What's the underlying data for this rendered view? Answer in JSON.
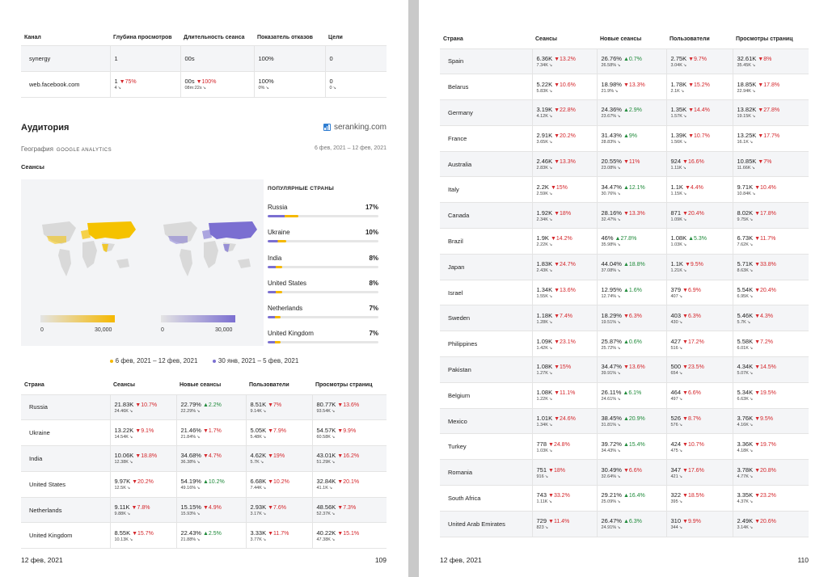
{
  "left": {
    "channel_table": {
      "headers": [
        "Канал",
        "Глубина просмотров",
        "Длительность сеанса",
        "Показатель отказов",
        "Цели"
      ],
      "rows": [
        {
          "cells": [
            {
              "v": "synergy"
            },
            {
              "v": "1"
            },
            {
              "v": "00s"
            },
            {
              "v": "100%"
            },
            {
              "v": "0"
            }
          ]
        },
        {
          "cells": [
            {
              "v": "web.facebook.com"
            },
            {
              "v": "1",
              "d": "▼75%",
              "dir": "dn",
              "s": "4"
            },
            {
              "v": "00s",
              "d": "▼100%",
              "dir": "dn",
              "s": "08m:22s"
            },
            {
              "v": "100%",
              "s": "0%"
            },
            {
              "v": "0",
              "s": "0"
            }
          ]
        }
      ]
    },
    "audience": {
      "title": "Аудитория",
      "brand": "seranking.com",
      "geo": "География",
      "geo_sub": "GOOGLE ANALYTICS",
      "dates": "6 фев, 2021 – 12 фев, 2021",
      "sessions_label": "Сеансы"
    },
    "map": {
      "color_current": "#f5b800",
      "color_previous": "#7b6fd1",
      "legend_min_1": "0",
      "legend_max_1": "30,000",
      "legend_min_2": "0",
      "legend_max_2": "30,000"
    },
    "popular": {
      "title": "ПОПУЛЯРНЫЕ СТРАНЫ",
      "items": [
        {
          "name": "Russia",
          "pct": "17%",
          "share": 0.17
        },
        {
          "name": "Ukraine",
          "pct": "10%",
          "share": 0.1
        },
        {
          "name": "India",
          "pct": "8%",
          "share": 0.08
        },
        {
          "name": "United States",
          "pct": "8%",
          "share": 0.08
        },
        {
          "name": "Netherlands",
          "pct": "7%",
          "share": 0.07
        },
        {
          "name": "United Kingdom",
          "pct": "7%",
          "share": 0.07
        }
      ]
    },
    "period_legend": {
      "current": "6 фев, 2021 – 12 фев, 2021",
      "previous": "30 янв, 2021 – 5 фев, 2021"
    },
    "country_table": {
      "headers": [
        "Страна",
        "Сеансы",
        "Новые сеансы",
        "Пользователи",
        "Просмотры страниц"
      ],
      "rows": [
        {
          "country": "Russia",
          "cells": [
            {
              "v": "21.83K",
              "d": "▼10.7%",
              "dir": "dn",
              "s": "24.46K"
            },
            {
              "v": "22.79%",
              "d": "▲2.2%",
              "dir": "up",
              "s": "22.29%"
            },
            {
              "v": "8.51K",
              "d": "▼7%",
              "dir": "dn",
              "s": "9.14K"
            },
            {
              "v": "80.77K",
              "d": "▼13.6%",
              "dir": "dn",
              "s": "93.54K"
            }
          ]
        },
        {
          "country": "Ukraine",
          "cells": [
            {
              "v": "13.22K",
              "d": "▼9.1%",
              "dir": "dn",
              "s": "14.54K"
            },
            {
              "v": "21.46%",
              "d": "▼1.7%",
              "dir": "dn",
              "s": "21.84%"
            },
            {
              "v": "5.05K",
              "d": "▼7.9%",
              "dir": "dn",
              "s": "5.48K"
            },
            {
              "v": "54.57K",
              "d": "▼9.9%",
              "dir": "dn",
              "s": "60.58K"
            }
          ]
        },
        {
          "country": "India",
          "cells": [
            {
              "v": "10.06K",
              "d": "▼18.8%",
              "dir": "dn",
              "s": "12.38K"
            },
            {
              "v": "34.68%",
              "d": "▼4.7%",
              "dir": "dn",
              "s": "36.38%"
            },
            {
              "v": "4.62K",
              "d": "▼19%",
              "dir": "dn",
              "s": "5.7K"
            },
            {
              "v": "43.01K",
              "d": "▼16.2%",
              "dir": "dn",
              "s": "51.29K"
            }
          ]
        },
        {
          "country": "United States",
          "cells": [
            {
              "v": "9.97K",
              "d": "▼20.2%",
              "dir": "dn",
              "s": "12.5K"
            },
            {
              "v": "54.19%",
              "d": "▲10.2%",
              "dir": "up",
              "s": "49.16%"
            },
            {
              "v": "6.68K",
              "d": "▼10.2%",
              "dir": "dn",
              "s": "7.44K"
            },
            {
              "v": "32.84K",
              "d": "▼20.1%",
              "dir": "dn",
              "s": "41.1K"
            }
          ]
        },
        {
          "country": "Netherlands",
          "cells": [
            {
              "v": "9.11K",
              "d": "▼7.8%",
              "dir": "dn",
              "s": "9.88K"
            },
            {
              "v": "15.15%",
              "d": "▼4.9%",
              "dir": "dn",
              "s": "15.93%"
            },
            {
              "v": "2.93K",
              "d": "▼7.6%",
              "dir": "dn",
              "s": "3.17K"
            },
            {
              "v": "48.56K",
              "d": "▼7.3%",
              "dir": "dn",
              "s": "52.37K"
            }
          ]
        },
        {
          "country": "United Kingdom",
          "cells": [
            {
              "v": "8.55K",
              "d": "▼15.7%",
              "dir": "dn",
              "s": "10.13K"
            },
            {
              "v": "22.43%",
              "d": "▲2.5%",
              "dir": "up",
              "s": "21.88%"
            },
            {
              "v": "3.33K",
              "d": "▼11.7%",
              "dir": "dn",
              "s": "3.77K"
            },
            {
              "v": "40.22K",
              "d": "▼15.1%",
              "dir": "dn",
              "s": "47.38K"
            }
          ]
        }
      ]
    },
    "footer_date": "12 фев, 2021",
    "page_number": "109"
  },
  "right": {
    "country_table": {
      "headers": [
        "Страна",
        "Сеансы",
        "Новые сеансы",
        "Пользователи",
        "Просмотры страниц"
      ],
      "rows": [
        {
          "country": "Spain",
          "cells": [
            {
              "v": "6.36K",
              "d": "▼13.2%",
              "dir": "dn",
              "s": "7.34K"
            },
            {
              "v": "26.76%",
              "d": "▲0.7%",
              "dir": "up",
              "s": "26.58%"
            },
            {
              "v": "2.75K",
              "d": "▼9.7%",
              "dir": "dn",
              "s": "3.04K"
            },
            {
              "v": "32.61K",
              "d": "▼8%",
              "dir": "dn",
              "s": "35.45K"
            }
          ]
        },
        {
          "country": "Belarus",
          "cells": [
            {
              "v": "5.22K",
              "d": "▼10.6%",
              "dir": "dn",
              "s": "5.83K"
            },
            {
              "v": "18.98%",
              "d": "▼13.3%",
              "dir": "dn",
              "s": "21.9%"
            },
            {
              "v": "1.78K",
              "d": "▼15.2%",
              "dir": "dn",
              "s": "2.1K"
            },
            {
              "v": "18.85K",
              "d": "▼17.8%",
              "dir": "dn",
              "s": "22.94K"
            }
          ]
        },
        {
          "country": "Germany",
          "cells": [
            {
              "v": "3.19K",
              "d": "▼22.8%",
              "dir": "dn",
              "s": "4.12K"
            },
            {
              "v": "24.36%",
              "d": "▲2.9%",
              "dir": "up",
              "s": "23.67%"
            },
            {
              "v": "1.35K",
              "d": "▼14.4%",
              "dir": "dn",
              "s": "1.57K"
            },
            {
              "v": "13.82K",
              "d": "▼27.8%",
              "dir": "dn",
              "s": "19.15K"
            }
          ]
        },
        {
          "country": "France",
          "cells": [
            {
              "v": "2.91K",
              "d": "▼20.2%",
              "dir": "dn",
              "s": "3.65K"
            },
            {
              "v": "31.43%",
              "d": "▲9%",
              "dir": "up",
              "s": "28.83%"
            },
            {
              "v": "1.39K",
              "d": "▼10.7%",
              "dir": "dn",
              "s": "1.56K"
            },
            {
              "v": "13.25K",
              "d": "▼17.7%",
              "dir": "dn",
              "s": "16.1K"
            }
          ]
        },
        {
          "country": "Australia",
          "cells": [
            {
              "v": "2.46K",
              "d": "▼13.3%",
              "dir": "dn",
              "s": "2.83K"
            },
            {
              "v": "20.55%",
              "d": "▼11%",
              "dir": "dn",
              "s": "23.08%"
            },
            {
              "v": "924",
              "d": "▼16.6%",
              "dir": "dn",
              "s": "1.11K"
            },
            {
              "v": "10.85K",
              "d": "▼7%",
              "dir": "dn",
              "s": "11.66K"
            }
          ]
        },
        {
          "country": "Italy",
          "cells": [
            {
              "v": "2.2K",
              "d": "▼15%",
              "dir": "dn",
              "s": "2.59K"
            },
            {
              "v": "34.47%",
              "d": "▲12.1%",
              "dir": "up",
              "s": "30.76%"
            },
            {
              "v": "1.1K",
              "d": "▼4.4%",
              "dir": "dn",
              "s": "1.15K"
            },
            {
              "v": "9.71K",
              "d": "▼10.4%",
              "dir": "dn",
              "s": "10.84K"
            }
          ]
        },
        {
          "country": "Canada",
          "cells": [
            {
              "v": "1.92K",
              "d": "▼18%",
              "dir": "dn",
              "s": "2.34K"
            },
            {
              "v": "28.16%",
              "d": "▼13.3%",
              "dir": "dn",
              "s": "32.47%"
            },
            {
              "v": "871",
              "d": "▼20.4%",
              "dir": "dn",
              "s": "1.09K"
            },
            {
              "v": "8.02K",
              "d": "▼17.8%",
              "dir": "dn",
              "s": "9.75K"
            }
          ]
        },
        {
          "country": "Brazil",
          "cells": [
            {
              "v": "1.9K",
              "d": "▼14.2%",
              "dir": "dn",
              "s": "2.22K"
            },
            {
              "v": "46%",
              "d": "▲27.8%",
              "dir": "up",
              "s": "35.98%"
            },
            {
              "v": "1.08K",
              "d": "▲5.3%",
              "dir": "up",
              "s": "1.03K"
            },
            {
              "v": "6.73K",
              "d": "▼11.7%",
              "dir": "dn",
              "s": "7.62K"
            }
          ]
        },
        {
          "country": "Japan",
          "cells": [
            {
              "v": "1.83K",
              "d": "▼24.7%",
              "dir": "dn",
              "s": "2.43K"
            },
            {
              "v": "44.04%",
              "d": "▲18.8%",
              "dir": "up",
              "s": "37.08%"
            },
            {
              "v": "1.1K",
              "d": "▼9.5%",
              "dir": "dn",
              "s": "1.21K"
            },
            {
              "v": "5.71K",
              "d": "▼33.8%",
              "dir": "dn",
              "s": "8.63K"
            }
          ]
        },
        {
          "country": "Israel",
          "cells": [
            {
              "v": "1.34K",
              "d": "▼13.6%",
              "dir": "dn",
              "s": "1.55K"
            },
            {
              "v": "12.95%",
              "d": "▲1.6%",
              "dir": "up",
              "s": "12.74%"
            },
            {
              "v": "379",
              "d": "▼6.9%",
              "dir": "dn",
              "s": "407"
            },
            {
              "v": "5.54K",
              "d": "▼20.4%",
              "dir": "dn",
              "s": "6.95K"
            }
          ]
        },
        {
          "country": "Sweden",
          "cells": [
            {
              "v": "1.18K",
              "d": "▼7.4%",
              "dir": "dn",
              "s": "1.28K"
            },
            {
              "v": "18.29%",
              "d": "▼6.3%",
              "dir": "dn",
              "s": "19.51%"
            },
            {
              "v": "403",
              "d": "▼6.3%",
              "dir": "dn",
              "s": "430"
            },
            {
              "v": "5.46K",
              "d": "▼4.3%",
              "dir": "dn",
              "s": "5.7K"
            }
          ]
        },
        {
          "country": "Philippines",
          "cells": [
            {
              "v": "1.09K",
              "d": "▼23.1%",
              "dir": "dn",
              "s": "1.42K"
            },
            {
              "v": "25.87%",
              "d": "▲0.6%",
              "dir": "up",
              "s": "25.72%"
            },
            {
              "v": "427",
              "d": "▼17.2%",
              "dir": "dn",
              "s": "516"
            },
            {
              "v": "5.58K",
              "d": "▼7.2%",
              "dir": "dn",
              "s": "6.01K"
            }
          ]
        },
        {
          "country": "Pakistan",
          "cells": [
            {
              "v": "1.08K",
              "d": "▼15%",
              "dir": "dn",
              "s": "1.27K"
            },
            {
              "v": "34.47%",
              "d": "▼13.6%",
              "dir": "dn",
              "s": "39.91%"
            },
            {
              "v": "500",
              "d": "▼23.5%",
              "dir": "dn",
              "s": "654"
            },
            {
              "v": "4.34K",
              "d": "▼14.5%",
              "dir": "dn",
              "s": "5.07K"
            }
          ]
        },
        {
          "country": "Belgium",
          "cells": [
            {
              "v": "1.08K",
              "d": "▼11.1%",
              "dir": "dn",
              "s": "1.22K"
            },
            {
              "v": "26.11%",
              "d": "▲6.1%",
              "dir": "up",
              "s": "24.61%"
            },
            {
              "v": "464",
              "d": "▼6.6%",
              "dir": "dn",
              "s": "497"
            },
            {
              "v": "5.34K",
              "d": "▼19.5%",
              "dir": "dn",
              "s": "6.63K"
            }
          ]
        },
        {
          "country": "Mexico",
          "cells": [
            {
              "v": "1.01K",
              "d": "▼24.6%",
              "dir": "dn",
              "s": "1.34K"
            },
            {
              "v": "38.45%",
              "d": "▲20.9%",
              "dir": "up",
              "s": "31.81%"
            },
            {
              "v": "526",
              "d": "▼8.7%",
              "dir": "dn",
              "s": "576"
            },
            {
              "v": "3.76K",
              "d": "▼9.5%",
              "dir": "dn",
              "s": "4.16K"
            }
          ]
        },
        {
          "country": "Turkey",
          "cells": [
            {
              "v": "778",
              "d": "▼24.8%",
              "dir": "dn",
              "s": "1.03K"
            },
            {
              "v": "39.72%",
              "d": "▲15.4%",
              "dir": "up",
              "s": "34.43%"
            },
            {
              "v": "424",
              "d": "▼10.7%",
              "dir": "dn",
              "s": "475"
            },
            {
              "v": "3.36K",
              "d": "▼19.7%",
              "dir": "dn",
              "s": "4.18K"
            }
          ]
        },
        {
          "country": "Romania",
          "cells": [
            {
              "v": "751",
              "d": "▼18%",
              "dir": "dn",
              "s": "916"
            },
            {
              "v": "30.49%",
              "d": "▼6.6%",
              "dir": "dn",
              "s": "32.64%"
            },
            {
              "v": "347",
              "d": "▼17.6%",
              "dir": "dn",
              "s": "421"
            },
            {
              "v": "3.78K",
              "d": "▼20.8%",
              "dir": "dn",
              "s": "4.77K"
            }
          ]
        },
        {
          "country": "South Africa",
          "cells": [
            {
              "v": "743",
              "d": "▼33.2%",
              "dir": "dn",
              "s": "1.11K"
            },
            {
              "v": "29.21%",
              "d": "▲16.4%",
              "dir": "up",
              "s": "25.09%"
            },
            {
              "v": "322",
              "d": "▼18.5%",
              "dir": "dn",
              "s": "395"
            },
            {
              "v": "3.35K",
              "d": "▼23.2%",
              "dir": "dn",
              "s": "4.37K"
            }
          ]
        },
        {
          "country": "United Arab Emirates",
          "cells": [
            {
              "v": "729",
              "d": "▼11.4%",
              "dir": "dn",
              "s": "823"
            },
            {
              "v": "26.47%",
              "d": "▲6.3%",
              "dir": "up",
              "s": "24.91%"
            },
            {
              "v": "310",
              "d": "▼9.9%",
              "dir": "dn",
              "s": "344"
            },
            {
              "v": "2.49K",
              "d": "▼20.6%",
              "dir": "dn",
              "s": "3.14K"
            }
          ]
        }
      ]
    },
    "footer_date": "12 фев, 2021",
    "page_number": "110"
  },
  "icons": {
    "change_icon": "chart-trend-icon",
    "brand_icon": "bar-chart-icon"
  }
}
